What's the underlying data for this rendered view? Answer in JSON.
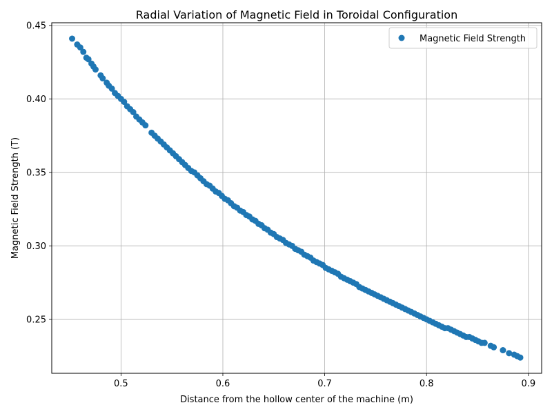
{
  "chart_data": {
    "type": "scatter",
    "title": "Radial Variation of Magnetic Field in Toroidal Configuration",
    "xlabel": "Distance from the hollow center of the machine (m)",
    "ylabel": "Magnetic Field Strength (T)",
    "xlim": [
      0.432,
      0.913
    ],
    "ylim": [
      0.2133,
      0.4518
    ],
    "xticks": [
      0.5,
      0.6,
      0.7,
      0.8,
      0.9
    ],
    "xtick_labels": [
      "0.5",
      "0.6",
      "0.7",
      "0.8",
      "0.9"
    ],
    "yticks": [
      0.25,
      0.3,
      0.35,
      0.4,
      0.45
    ],
    "ytick_labels": [
      "0.25",
      "0.30",
      "0.35",
      "0.40",
      "0.45"
    ],
    "grid": true,
    "legend_position": "top-right",
    "series": [
      {
        "name": "Magnetic Field Strength",
        "color": "#1f77b4",
        "points": [
          [
            0.452,
            0.441
          ],
          [
            0.457,
            0.437
          ],
          [
            0.46,
            0.435
          ],
          [
            0.463,
            0.432
          ],
          [
            0.466,
            0.428
          ],
          [
            0.468,
            0.427
          ],
          [
            0.471,
            0.424
          ],
          [
            0.473,
            0.422
          ],
          [
            0.475,
            0.42
          ],
          [
            0.48,
            0.416
          ],
          [
            0.482,
            0.414
          ],
          [
            0.486,
            0.411
          ],
          [
            0.488,
            0.409
          ],
          [
            0.491,
            0.407
          ],
          [
            0.494,
            0.404
          ],
          [
            0.497,
            0.402
          ],
          [
            0.5,
            0.4
          ],
          [
            0.503,
            0.398
          ],
          [
            0.506,
            0.395
          ],
          [
            0.509,
            0.393
          ],
          [
            0.512,
            0.391
          ],
          [
            0.515,
            0.388
          ],
          [
            0.518,
            0.386
          ],
          [
            0.521,
            0.384
          ],
          [
            0.524,
            0.382
          ],
          [
            0.53,
            0.377
          ],
          [
            0.533,
            0.375
          ],
          [
            0.536,
            0.373
          ],
          [
            0.539,
            0.371
          ],
          [
            0.542,
            0.369
          ],
          [
            0.545,
            0.367
          ],
          [
            0.548,
            0.365
          ],
          [
            0.551,
            0.363
          ],
          [
            0.554,
            0.361
          ],
          [
            0.557,
            0.359
          ],
          [
            0.56,
            0.357
          ],
          [
            0.563,
            0.355
          ],
          [
            0.566,
            0.353
          ],
          [
            0.569,
            0.351
          ],
          [
            0.572,
            0.35
          ],
          [
            0.575,
            0.348
          ],
          [
            0.578,
            0.346
          ],
          [
            0.581,
            0.344
          ],
          [
            0.584,
            0.342
          ],
          [
            0.587,
            0.341
          ],
          [
            0.59,
            0.339
          ],
          [
            0.593,
            0.337
          ],
          [
            0.596,
            0.336
          ],
          [
            0.599,
            0.334
          ],
          [
            0.602,
            0.332
          ],
          [
            0.605,
            0.331
          ],
          [
            0.608,
            0.329
          ],
          [
            0.611,
            0.327
          ],
          [
            0.614,
            0.326
          ],
          [
            0.617,
            0.324
          ],
          [
            0.62,
            0.323
          ],
          [
            0.623,
            0.321
          ],
          [
            0.626,
            0.32
          ],
          [
            0.629,
            0.318
          ],
          [
            0.632,
            0.317
          ],
          [
            0.635,
            0.315
          ],
          [
            0.638,
            0.314
          ],
          [
            0.641,
            0.312
          ],
          [
            0.644,
            0.311
          ],
          [
            0.647,
            0.309
          ],
          [
            0.65,
            0.308
          ],
          [
            0.653,
            0.306
          ],
          [
            0.656,
            0.305
          ],
          [
            0.659,
            0.304
          ],
          [
            0.662,
            0.302
          ],
          [
            0.665,
            0.301
          ],
          [
            0.668,
            0.3
          ],
          [
            0.671,
            0.298
          ],
          [
            0.674,
            0.297
          ],
          [
            0.677,
            0.296
          ],
          [
            0.68,
            0.294
          ],
          [
            0.683,
            0.293
          ],
          [
            0.686,
            0.292
          ],
          [
            0.689,
            0.29
          ],
          [
            0.692,
            0.289
          ],
          [
            0.695,
            0.288
          ],
          [
            0.698,
            0.287
          ],
          [
            0.701,
            0.285
          ],
          [
            0.704,
            0.284
          ],
          [
            0.707,
            0.283
          ],
          [
            0.71,
            0.282
          ],
          [
            0.713,
            0.281
          ],
          [
            0.716,
            0.279
          ],
          [
            0.719,
            0.278
          ],
          [
            0.722,
            0.277
          ],
          [
            0.725,
            0.276
          ],
          [
            0.728,
            0.275
          ],
          [
            0.731,
            0.274
          ],
          [
            0.734,
            0.272
          ],
          [
            0.737,
            0.271
          ],
          [
            0.74,
            0.27
          ],
          [
            0.743,
            0.269
          ],
          [
            0.746,
            0.268
          ],
          [
            0.749,
            0.267
          ],
          [
            0.752,
            0.266
          ],
          [
            0.755,
            0.265
          ],
          [
            0.758,
            0.264
          ],
          [
            0.761,
            0.263
          ],
          [
            0.764,
            0.262
          ],
          [
            0.767,
            0.261
          ],
          [
            0.77,
            0.26
          ],
          [
            0.773,
            0.259
          ],
          [
            0.776,
            0.258
          ],
          [
            0.779,
            0.257
          ],
          [
            0.782,
            0.256
          ],
          [
            0.785,
            0.255
          ],
          [
            0.788,
            0.254
          ],
          [
            0.791,
            0.253
          ],
          [
            0.794,
            0.252
          ],
          [
            0.797,
            0.251
          ],
          [
            0.8,
            0.25
          ],
          [
            0.803,
            0.249
          ],
          [
            0.806,
            0.248
          ],
          [
            0.809,
            0.247
          ],
          [
            0.812,
            0.246
          ],
          [
            0.815,
            0.245
          ],
          [
            0.818,
            0.244
          ],
          [
            0.821,
            0.244
          ],
          [
            0.824,
            0.243
          ],
          [
            0.827,
            0.242
          ],
          [
            0.83,
            0.241
          ],
          [
            0.833,
            0.24
          ],
          [
            0.836,
            0.239
          ],
          [
            0.839,
            0.238
          ],
          [
            0.842,
            0.238
          ],
          [
            0.845,
            0.237
          ],
          [
            0.848,
            0.236
          ],
          [
            0.851,
            0.235
          ],
          [
            0.854,
            0.234
          ],
          [
            0.857,
            0.234
          ],
          [
            0.863,
            0.232
          ],
          [
            0.866,
            0.231
          ],
          [
            0.875,
            0.229
          ],
          [
            0.881,
            0.227
          ],
          [
            0.886,
            0.226
          ],
          [
            0.889,
            0.225
          ],
          [
            0.892,
            0.224
          ]
        ]
      }
    ]
  }
}
